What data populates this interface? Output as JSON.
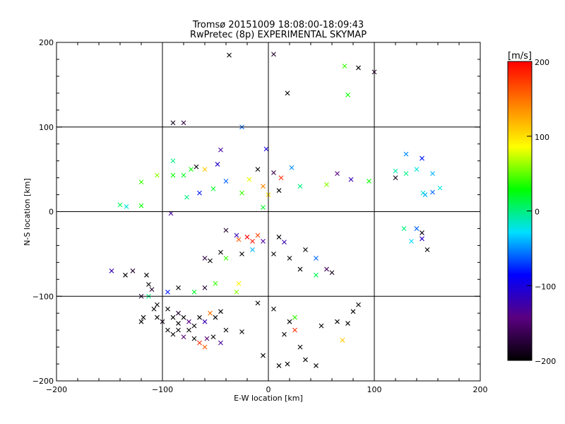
{
  "chart_data": {
    "type": "scatter",
    "title": "Tromsø 20151009 18:08:00-18:09:43",
    "subtitle": "RwPretec (8p) EXPERIMENTAL SKYMAP",
    "xlabel": "E-W location [km]",
    "ylabel": "N-S location [km]",
    "xlim": [
      -200,
      200
    ],
    "ylim": [
      -200,
      200
    ],
    "xticks": [
      "−200",
      "−100",
      "0",
      "100",
      "200"
    ],
    "yticks": [
      "−200",
      "−100",
      "0",
      "100",
      "200"
    ],
    "grid": true,
    "colorbar": {
      "label": "[m/s]",
      "range": [
        -200,
        200
      ],
      "ticks": [
        "200",
        "100",
        "0",
        "−100",
        "−200"
      ],
      "colormap": [
        "#000000",
        "#5a0080",
        "#0000ff",
        "#00e0ff",
        "#00ff00",
        "#ffff00",
        "#ff8000",
        "#ff0000"
      ]
    },
    "series": [
      {
        "marker": "x",
        "points": [
          {
            "x": -37,
            "y": 185,
            "v": -200
          },
          {
            "x": 5,
            "y": 186,
            "v": -180
          },
          {
            "x": 72,
            "y": 172,
            "v": 40
          },
          {
            "x": 85,
            "y": 170,
            "v": -200
          },
          {
            "x": 100,
            "y": 165,
            "v": -180
          },
          {
            "x": 18,
            "y": 140,
            "v": -200
          },
          {
            "x": 75,
            "y": 138,
            "v": 30
          },
          {
            "x": -90,
            "y": 105,
            "v": -190
          },
          {
            "x": -80,
            "y": 105,
            "v": -170
          },
          {
            "x": -25,
            "y": 100,
            "v": -60
          },
          {
            "x": -45,
            "y": 73,
            "v": -130
          },
          {
            "x": -2,
            "y": 74,
            "v": -100
          },
          {
            "x": -60,
            "y": 50,
            "v": 110
          },
          {
            "x": -48,
            "y": 56,
            "v": -110
          },
          {
            "x": -105,
            "y": 43,
            "v": 60
          },
          {
            "x": -90,
            "y": 43,
            "v": 30
          },
          {
            "x": -80,
            "y": 43,
            "v": 20
          },
          {
            "x": -73,
            "y": 50,
            "v": 30
          },
          {
            "x": -68,
            "y": 53,
            "v": -200
          },
          {
            "x": -90,
            "y": 60,
            "v": 0
          },
          {
            "x": 120,
            "y": 48,
            "v": -10
          },
          {
            "x": 130,
            "y": 68,
            "v": -50
          },
          {
            "x": 145,
            "y": 63,
            "v": -80
          },
          {
            "x": 140,
            "y": 50,
            "v": -20
          },
          {
            "x": 155,
            "y": 45,
            "v": -40
          },
          {
            "x": 130,
            "y": 45,
            "v": 0
          },
          {
            "x": 120,
            "y": 40,
            "v": -190
          },
          {
            "x": 65,
            "y": 45,
            "v": -140
          },
          {
            "x": 78,
            "y": 38,
            "v": -120
          },
          {
            "x": 95,
            "y": 36,
            "v": 30
          },
          {
            "x": 55,
            "y": 32,
            "v": 60
          },
          {
            "x": -40,
            "y": 36,
            "v": -60
          },
          {
            "x": -52,
            "y": 27,
            "v": 20
          },
          {
            "x": -65,
            "y": 22,
            "v": -80
          },
          {
            "x": -18,
            "y": 38,
            "v": 80
          },
          {
            "x": -10,
            "y": 50,
            "v": -200
          },
          {
            "x": 5,
            "y": 46,
            "v": -170
          },
          {
            "x": 12,
            "y": 40,
            "v": 180
          },
          {
            "x": -5,
            "y": 30,
            "v": 140
          },
          {
            "x": 0,
            "y": 20,
            "v": 100
          },
          {
            "x": 10,
            "y": 25,
            "v": -200
          },
          {
            "x": -25,
            "y": 22,
            "v": 40
          },
          {
            "x": 22,
            "y": 52,
            "v": -50
          },
          {
            "x": 30,
            "y": 30,
            "v": 0
          },
          {
            "x": -5,
            "y": 5,
            "v": 20
          },
          {
            "x": -77,
            "y": 17,
            "v": 0
          },
          {
            "x": -120,
            "y": 35,
            "v": 40
          },
          {
            "x": -140,
            "y": 8,
            "v": 10
          },
          {
            "x": -134,
            "y": 6,
            "v": -20
          },
          {
            "x": -120,
            "y": 7,
            "v": 30
          },
          {
            "x": -92,
            "y": -2,
            "v": -130
          },
          {
            "x": 146,
            "y": 22,
            "v": -20
          },
          {
            "x": 155,
            "y": 23,
            "v": -60
          },
          {
            "x": 162,
            "y": 28,
            "v": -20
          },
          {
            "x": 148,
            "y": 20,
            "v": -40
          },
          {
            "x": 140,
            "y": -20,
            "v": -60
          },
          {
            "x": 145,
            "y": -25,
            "v": -190
          },
          {
            "x": 128,
            "y": -20,
            "v": 0
          },
          {
            "x": 135,
            "y": -35,
            "v": -30
          },
          {
            "x": 150,
            "y": -45,
            "v": -200
          },
          {
            "x": 145,
            "y": -32,
            "v": -110
          },
          {
            "x": -40,
            "y": -22,
            "v": -180
          },
          {
            "x": -30,
            "y": -28,
            "v": -120
          },
          {
            "x": -20,
            "y": -30,
            "v": 200
          },
          {
            "x": -15,
            "y": -35,
            "v": 190
          },
          {
            "x": -28,
            "y": -33,
            "v": 160
          },
          {
            "x": -10,
            "y": -28,
            "v": 170
          },
          {
            "x": -5,
            "y": -35,
            "v": -130
          },
          {
            "x": 10,
            "y": -30,
            "v": -200
          },
          {
            "x": 15,
            "y": -36,
            "v": -120
          },
          {
            "x": -60,
            "y": -55,
            "v": -170
          },
          {
            "x": -55,
            "y": -58,
            "v": -200
          },
          {
            "x": -45,
            "y": -48,
            "v": -200
          },
          {
            "x": -40,
            "y": -55,
            "v": 40
          },
          {
            "x": -25,
            "y": -50,
            "v": -200
          },
          {
            "x": -15,
            "y": -45,
            "v": -40
          },
          {
            "x": 5,
            "y": -50,
            "v": -200
          },
          {
            "x": 20,
            "y": -55,
            "v": -200
          },
          {
            "x": 35,
            "y": -45,
            "v": -200
          },
          {
            "x": 45,
            "y": -55,
            "v": -60
          },
          {
            "x": 55,
            "y": -68,
            "v": -160
          },
          {
            "x": 60,
            "y": -72,
            "v": -190
          },
          {
            "x": 45,
            "y": -75,
            "v": 10
          },
          {
            "x": 30,
            "y": -68,
            "v": -200
          },
          {
            "x": -148,
            "y": -70,
            "v": -120
          },
          {
            "x": -135,
            "y": -75,
            "v": -200
          },
          {
            "x": -128,
            "y": -70,
            "v": -180
          },
          {
            "x": -115,
            "y": -75,
            "v": -200
          },
          {
            "x": -113,
            "y": -86,
            "v": -200
          },
          {
            "x": -110,
            "y": -92,
            "v": -180
          },
          {
            "x": -120,
            "y": -100,
            "v": -180
          },
          {
            "x": -113,
            "y": -100,
            "v": 0
          },
          {
            "x": -95,
            "y": -95,
            "v": -80
          },
          {
            "x": -85,
            "y": -90,
            "v": -200
          },
          {
            "x": -70,
            "y": -95,
            "v": 20
          },
          {
            "x": -60,
            "y": -90,
            "v": -180
          },
          {
            "x": -50,
            "y": -85,
            "v": 40
          },
          {
            "x": -30,
            "y": -95,
            "v": 60
          },
          {
            "x": -28,
            "y": -85,
            "v": 90
          },
          {
            "x": -108,
            "y": -115,
            "v": -200
          },
          {
            "x": -105,
            "y": -110,
            "v": -200
          },
          {
            "x": -95,
            "y": -115,
            "v": -200
          },
          {
            "x": -105,
            "y": -125,
            "v": -200
          },
          {
            "x": -100,
            "y": -130,
            "v": -190
          },
          {
            "x": -90,
            "y": -125,
            "v": -200
          },
          {
            "x": -85,
            "y": -120,
            "v": -180
          },
          {
            "x": -80,
            "y": -125,
            "v": -200
          },
          {
            "x": -75,
            "y": -130,
            "v": -140
          },
          {
            "x": -70,
            "y": -135,
            "v": -200
          },
          {
            "x": -65,
            "y": -125,
            "v": -200
          },
          {
            "x": -60,
            "y": -130,
            "v": -120
          },
          {
            "x": -55,
            "y": -120,
            "v": 150
          },
          {
            "x": -50,
            "y": -125,
            "v": -200
          },
          {
            "x": -45,
            "y": -118,
            "v": -200
          },
          {
            "x": -95,
            "y": -140,
            "v": -200
          },
          {
            "x": -90,
            "y": -145,
            "v": -200
          },
          {
            "x": -85,
            "y": -140,
            "v": -200
          },
          {
            "x": -80,
            "y": -148,
            "v": -150
          },
          {
            "x": -75,
            "y": -140,
            "v": -200
          },
          {
            "x": -70,
            "y": -150,
            "v": -200
          },
          {
            "x": -65,
            "y": -155,
            "v": 180
          },
          {
            "x": -58,
            "y": -150,
            "v": -150
          },
          {
            "x": -52,
            "y": -148,
            "v": -200
          },
          {
            "x": -45,
            "y": -155,
            "v": -130
          },
          {
            "x": -40,
            "y": -140,
            "v": -200
          },
          {
            "x": -85,
            "y": -132,
            "v": -200
          },
          {
            "x": -60,
            "y": -160,
            "v": 160
          },
          {
            "x": -120,
            "y": -130,
            "v": -200
          },
          {
            "x": -118,
            "y": -125,
            "v": -200
          },
          {
            "x": 20,
            "y": -130,
            "v": -200
          },
          {
            "x": 25,
            "y": -125,
            "v": 40
          },
          {
            "x": 15,
            "y": -145,
            "v": -200
          },
          {
            "x": 30,
            "y": -160,
            "v": -200
          },
          {
            "x": 25,
            "y": -140,
            "v": 180
          },
          {
            "x": 50,
            "y": -135,
            "v": -200
          },
          {
            "x": 65,
            "y": -130,
            "v": -200
          },
          {
            "x": 75,
            "y": -132,
            "v": -200
          },
          {
            "x": 80,
            "y": -118,
            "v": -200
          },
          {
            "x": 70,
            "y": -152,
            "v": 110
          },
          {
            "x": 85,
            "y": -110,
            "v": -200
          },
          {
            "x": -25,
            "y": -142,
            "v": -200
          },
          {
            "x": -5,
            "y": -170,
            "v": -200
          },
          {
            "x": 10,
            "y": -182,
            "v": -200
          },
          {
            "x": 18,
            "y": -180,
            "v": -200
          },
          {
            "x": 45,
            "y": -182,
            "v": -200
          },
          {
            "x": 35,
            "y": -175,
            "v": -200
          },
          {
            "x": -10,
            "y": -108,
            "v": -200
          },
          {
            "x": 5,
            "y": -115,
            "v": -200
          }
        ]
      },
      {
        "marker": "dot",
        "points": []
      }
    ]
  }
}
